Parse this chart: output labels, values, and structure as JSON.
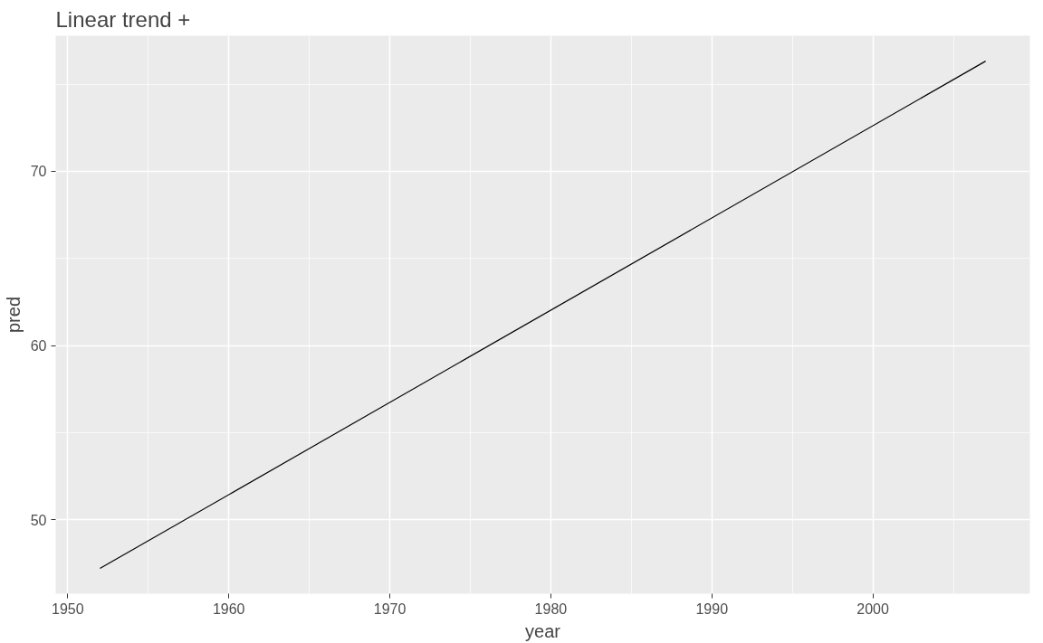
{
  "chart_data": {
    "type": "line",
    "title": "Linear trend +",
    "xlabel": "year",
    "ylabel": "pred",
    "x": [
      1952,
      2007
    ],
    "series": [
      {
        "color": "#000000",
        "values": [
          47.21,
          76.32
        ]
      }
    ],
    "xlim": [
      1949.25,
      2009.75
    ],
    "xticks": [
      1950,
      1960,
      1970,
      1980,
      1990,
      2000
    ],
    "ylim": [
      45.76,
      77.78
    ],
    "yticks": [
      50,
      60,
      70
    ],
    "grid": true,
    "marker": "none",
    "line_style": "solid"
  }
}
